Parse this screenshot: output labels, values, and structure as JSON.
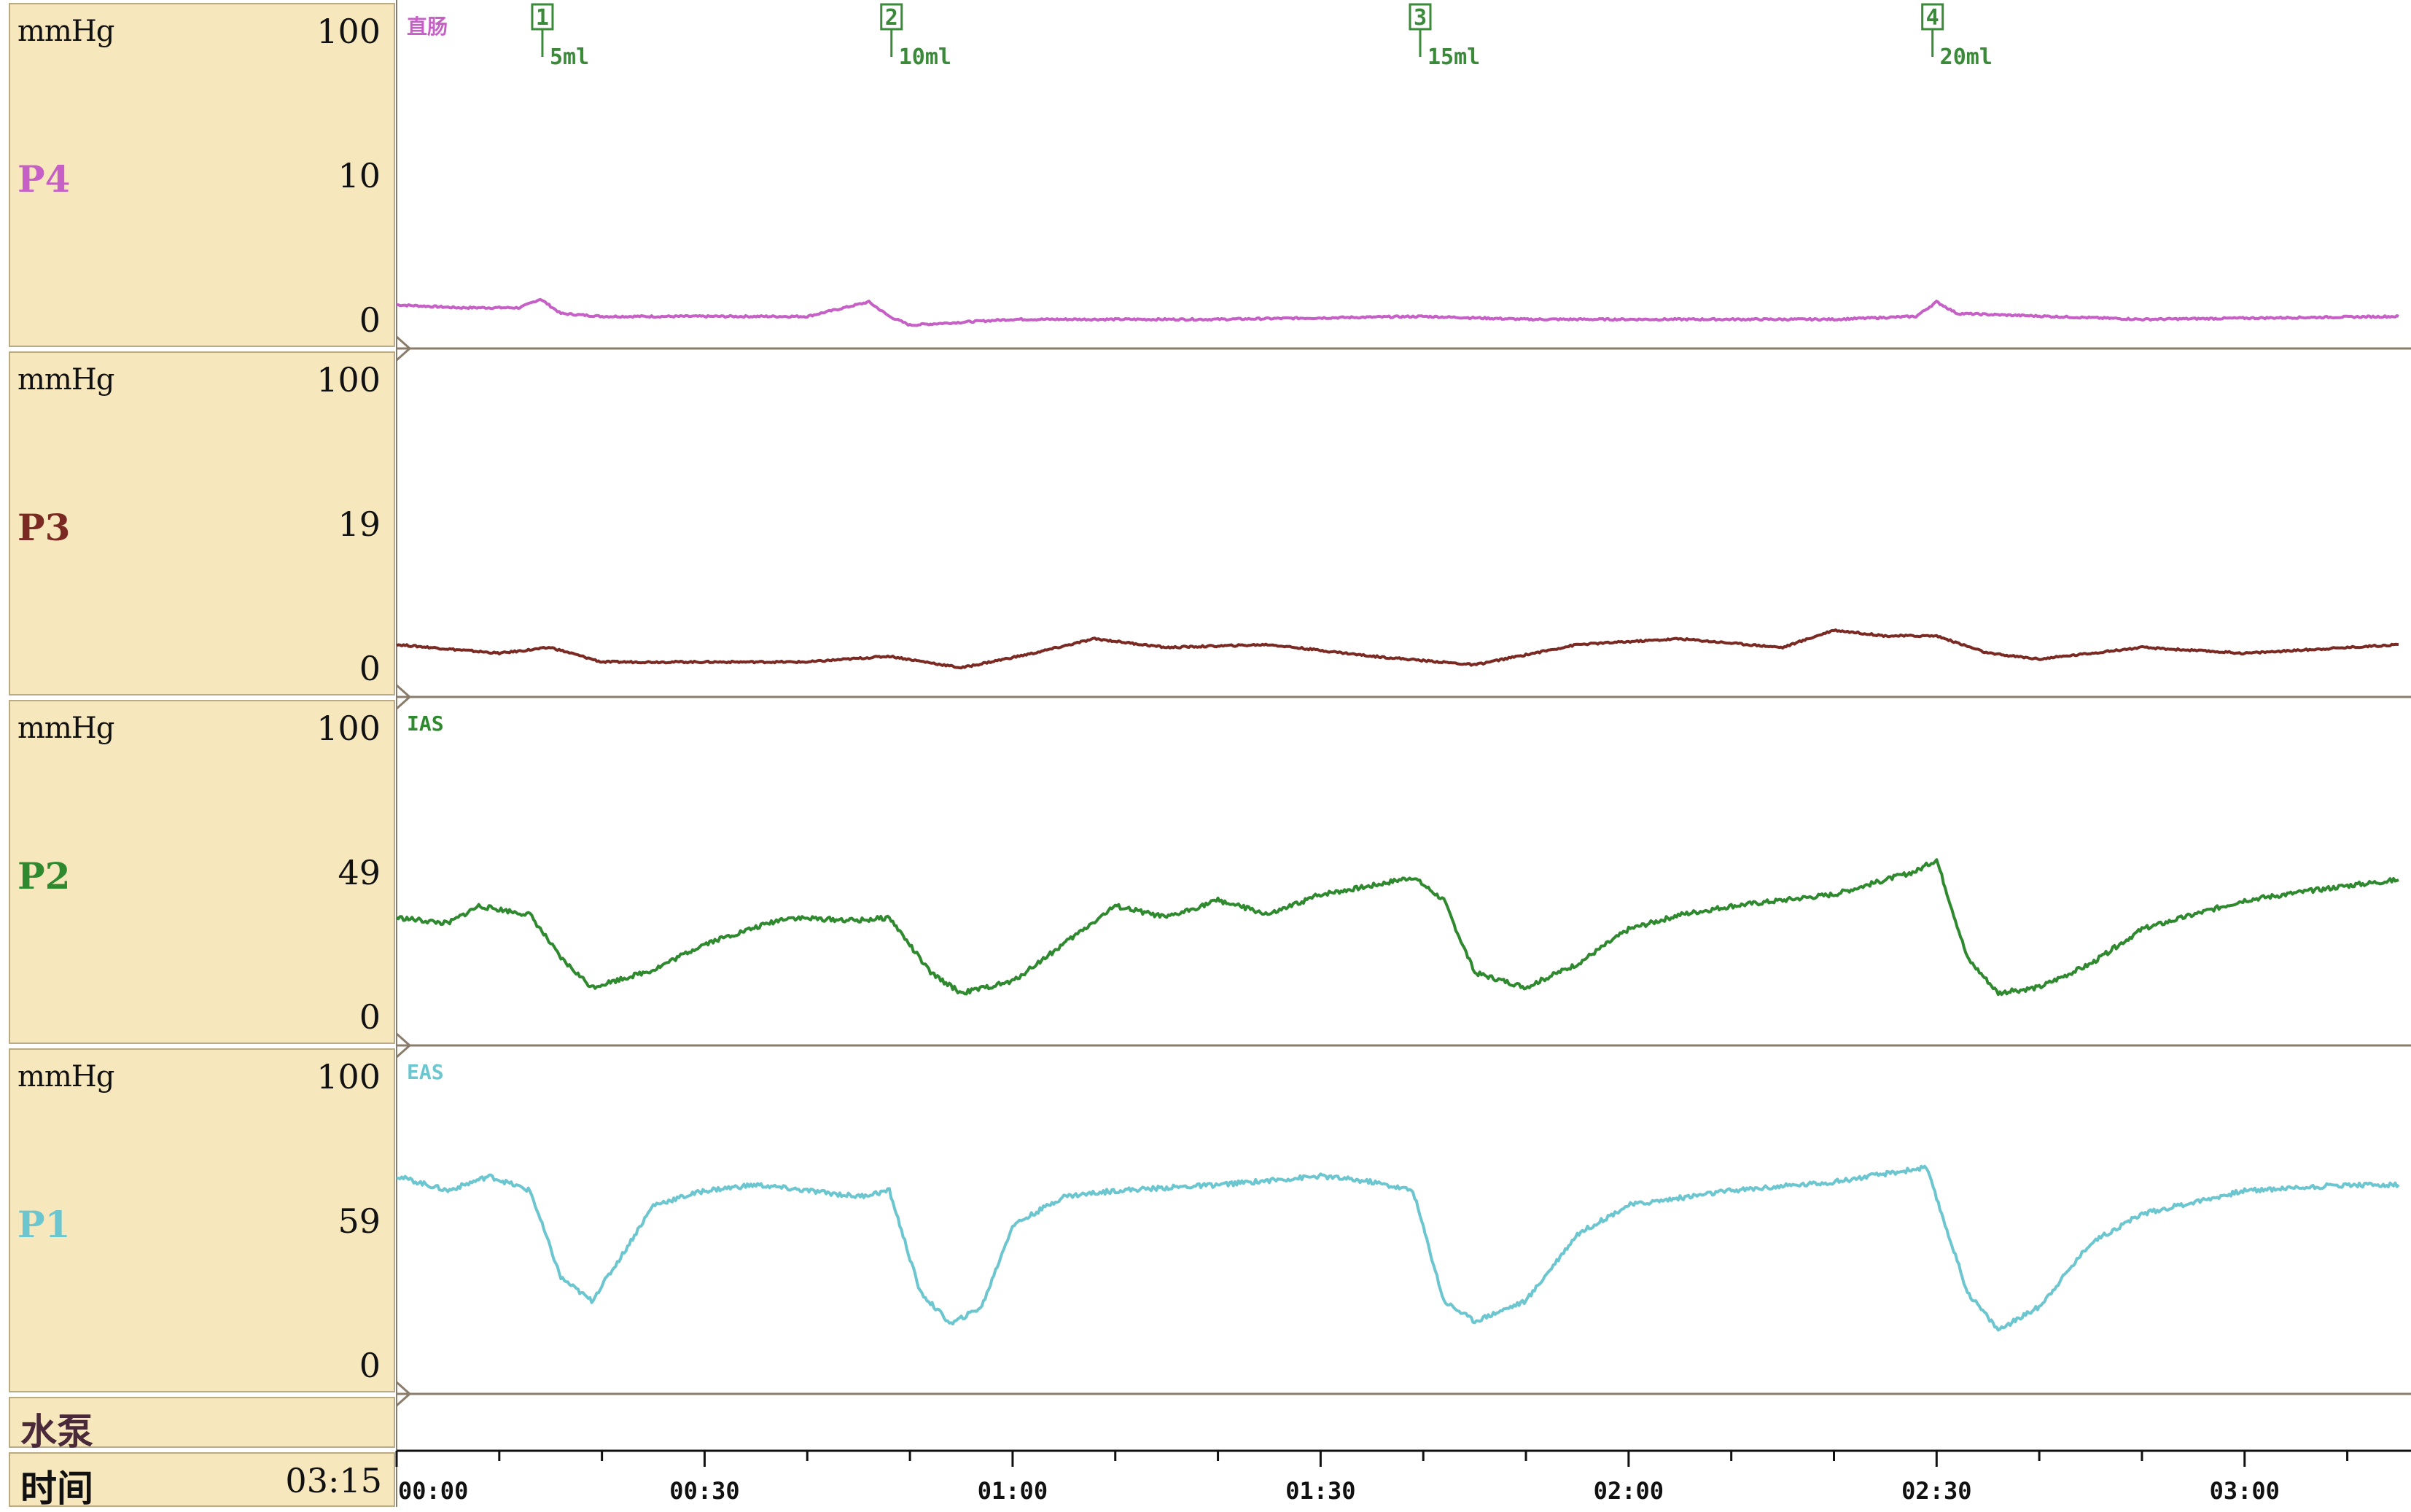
{
  "panels": [
    {
      "name": "P4",
      "unit": "mmHg",
      "max": "100",
      "mid": "10",
      "min": "0",
      "color": "#c65fc6",
      "channel_label": "直肠"
    },
    {
      "name": "P3",
      "unit": "mmHg",
      "max": "100",
      "mid": "19",
      "min": "0",
      "color": "#7a2a22",
      "channel_label": ""
    },
    {
      "name": "P2",
      "unit": "mmHg",
      "max": "100",
      "mid": "49",
      "min": "0",
      "color": "#2f8a2f",
      "channel_label": "IAS"
    },
    {
      "name": "P1",
      "unit": "mmHg",
      "max": "100",
      "mid": "59",
      "min": "0",
      "color": "#6cc6cf",
      "channel_label": "EAS"
    }
  ],
  "pump_label": "水泵",
  "time_label": "时间",
  "time_value": "03:15",
  "markers": [
    {
      "num": "1",
      "volume": "5ml",
      "t": 14.2
    },
    {
      "num": "2",
      "volume": "10ml",
      "t": 48.2
    },
    {
      "num": "3",
      "volume": "15ml",
      "t": 99.7
    },
    {
      "num": "4",
      "volume": "20ml",
      "t": 149.6
    }
  ],
  "time_ticks": [
    "00:00",
    "00:30",
    "01:00",
    "01:30",
    "02:00",
    "02:30",
    "03:00"
  ],
  "colors": {
    "panel_bg": "#f6e7bc",
    "panel_border": "#b9ab85",
    "axis": "#8a7c6a",
    "marker": "#3a8a3a"
  },
  "chart_data": {
    "type": "line",
    "x_unit": "mm:ss",
    "xlim": [
      0,
      195
    ],
    "series": [
      {
        "name": "P4",
        "ylim": [
          0,
          100
        ],
        "t": [
          0,
          6,
          12,
          14,
          16,
          20,
          30,
          40,
          46,
          48,
          50,
          60,
          80,
          100,
          110,
          140,
          148,
          150,
          152,
          170,
          195
        ],
        "y": [
          5,
          4,
          4,
          7,
          2,
          1,
          1,
          1,
          6,
          1,
          -2,
          0,
          0,
          1,
          0,
          0,
          1,
          6,
          2,
          0,
          1
        ]
      },
      {
        "name": "P3",
        "ylim": [
          0,
          100
        ],
        "t": [
          0,
          10,
          15,
          20,
          30,
          40,
          48,
          55,
          62,
          68,
          75,
          85,
          95,
          105,
          115,
          125,
          135,
          140,
          145,
          150,
          155,
          160,
          170,
          180,
          195
        ],
        "y": [
          8,
          5,
          7,
          2,
          2,
          2,
          4,
          0,
          5,
          10,
          7,
          8,
          4,
          1,
          8,
          10,
          7,
          13,
          11,
          11,
          5,
          3,
          7,
          5,
          8
        ]
      },
      {
        "name": "P2",
        "ylim": [
          0,
          100
        ],
        "t": [
          0,
          5,
          8,
          13,
          16,
          19,
          25,
          30,
          38,
          45,
          48,
          52,
          55,
          60,
          65,
          70,
          75,
          80,
          85,
          90,
          95,
          99,
          102,
          105,
          110,
          115,
          120,
          125,
          130,
          140,
          148,
          150,
          153,
          156,
          160,
          165,
          170,
          180,
          190,
          195
        ],
        "y": [
          34,
          32,
          38,
          35,
          20,
          10,
          16,
          25,
          34,
          33,
          34,
          15,
          8,
          12,
          25,
          38,
          34,
          40,
          35,
          42,
          45,
          48,
          40,
          15,
          10,
          18,
          30,
          35,
          38,
          42,
          50,
          54,
          20,
          8,
          10,
          18,
          30,
          40,
          45,
          47
        ]
      },
      {
        "name": "P1",
        "ylim": [
          0,
          100
        ],
        "t": [
          0,
          5,
          9,
          13,
          16,
          19,
          22,
          25,
          30,
          35,
          40,
          45,
          48,
          51,
          54,
          57,
          60,
          65,
          70,
          80,
          90,
          95,
          99,
          102,
          105,
          110,
          115,
          120,
          130,
          140,
          149,
          153,
          156,
          160,
          165,
          170,
          180,
          190,
          195
        ],
        "y": [
          65,
          60,
          65,
          60,
          30,
          22,
          38,
          55,
          60,
          62,
          60,
          58,
          60,
          25,
          14,
          20,
          48,
          58,
          60,
          62,
          65,
          63,
          60,
          22,
          15,
          22,
          45,
          55,
          60,
          63,
          68,
          25,
          12,
          20,
          42,
          52,
          60,
          62,
          62
        ]
      }
    ]
  }
}
